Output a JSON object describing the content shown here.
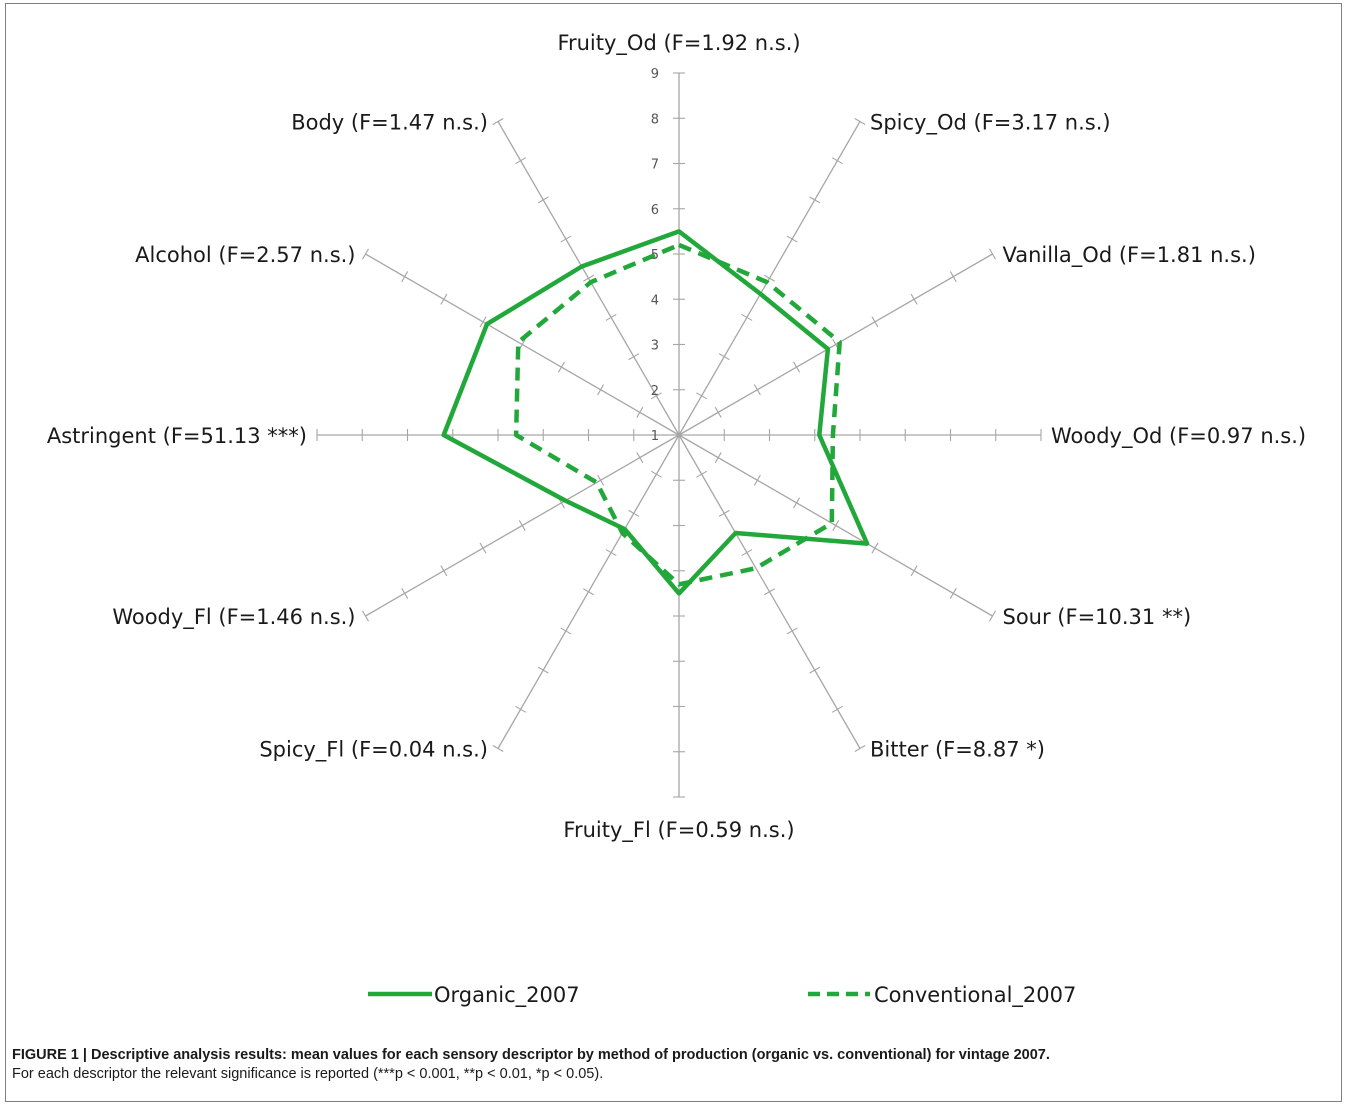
{
  "chart_data": {
    "type": "radar",
    "axes": [
      {
        "name": "Fruity_Od",
        "label": "Fruity_Od (F=1.92 n.s.)"
      },
      {
        "name": "Spicy_Od",
        "label": "Spicy_Od (F=3.17 n.s.)"
      },
      {
        "name": "Vanilla_Od",
        "label": "Vanilla_Od (F=1.81 n.s.)"
      },
      {
        "name": "Woody_Od",
        "label": "Woody_Od (F=0.97 n.s.)"
      },
      {
        "name": "Sour",
        "label": "Sour (F=10.31 **)"
      },
      {
        "name": "Bitter",
        "label": "Bitter (F=8.87 *)"
      },
      {
        "name": "Fruity_Fl",
        "label": "Fruity_Fl (F=0.59 n.s.)"
      },
      {
        "name": "Spicy_Fl",
        "label": "Spicy_Fl (F=0.04 n.s.)"
      },
      {
        "name": "Woody_Fl",
        "label": "Woody_Fl (F=1.46 n.s.)"
      },
      {
        "name": "Astringent",
        "label": "Astringent (F=51.13 ***)"
      },
      {
        "name": "Alcohol",
        "label": "Alcohol (F=2.57 n.s.)"
      },
      {
        "name": "Body",
        "label": "Body (F=1.47 n.s.)"
      }
    ],
    "range": [
      1,
      9
    ],
    "ticks": [
      "1",
      "2",
      "3",
      "4",
      "5",
      "6",
      "7",
      "8",
      "9"
    ],
    "series": [
      {
        "name": "Organic_2007",
        "style": "solid",
        "color": "#22a83a",
        "values": [
          5.5,
          4.6,
          4.8,
          4.1,
          5.8,
          3.5,
          4.5,
          3.4,
          3.9,
          6.2,
          5.9,
          5.3
        ]
      },
      {
        "name": "Conventional_2007",
        "style": "dashed",
        "color": "#22a83a",
        "values": [
          5.2,
          4.9,
          5.1,
          4.4,
          4.9,
          4.4,
          4.3,
          3.5,
          3.1,
          4.6,
          5.1,
          4.9
        ]
      }
    ]
  },
  "caption": {
    "title": "FIGURE 1 | Descriptive analysis results: mean values for each sensory descriptor by method of production (organic vs. conventional) for vintage 2007.",
    "body": "For each descriptor the relevant significance is reported (***p < 0.001, **p < 0.01, *p < 0.05)."
  }
}
